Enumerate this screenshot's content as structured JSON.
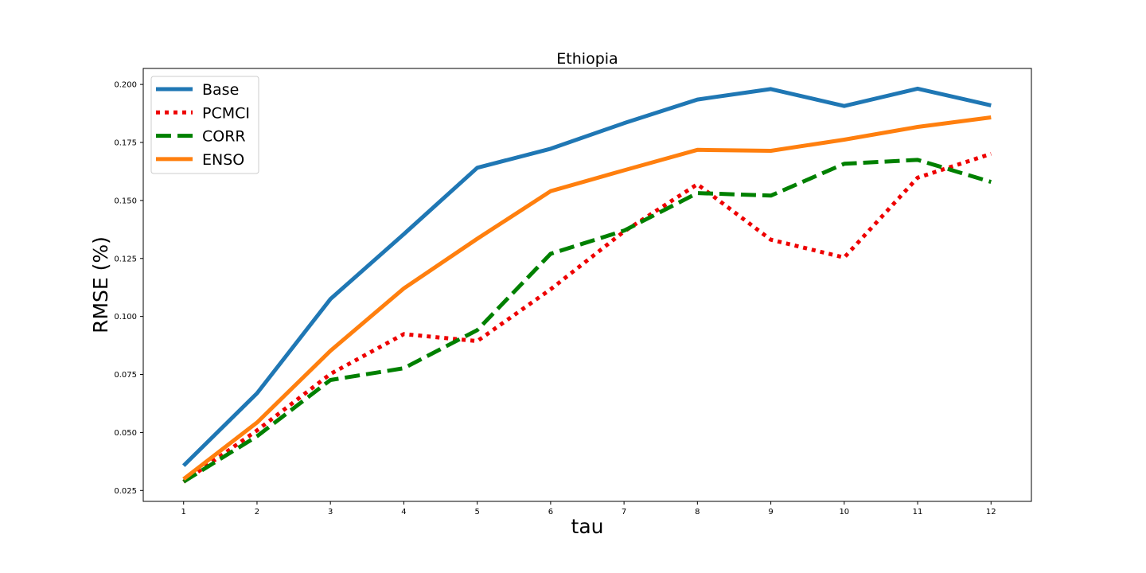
{
  "chart_data": {
    "type": "line",
    "title": "Ethiopia",
    "xlabel": "tau",
    "ylabel": "RMSE (%)",
    "x": [
      1,
      2,
      3,
      4,
      5,
      6,
      7,
      8,
      9,
      10,
      11,
      12
    ],
    "x_ticks": [
      "1",
      "2",
      "3",
      "4",
      "5",
      "6",
      "7",
      "8",
      "9",
      "10",
      "11",
      "12"
    ],
    "xlim": [
      0.45,
      12.55
    ],
    "ylim": [
      0.0203,
      0.2069
    ],
    "y_ticks": [
      "0.025",
      "0.050",
      "0.075",
      "0.100",
      "0.125",
      "0.150",
      "0.175",
      "0.200"
    ],
    "y_tick_values": [
      0.025,
      0.05,
      0.075,
      0.1,
      0.125,
      0.15,
      0.175,
      0.2
    ],
    "grid": false,
    "legend_position": "upper-left",
    "series": [
      {
        "name": "Base",
        "color": "#1f77b4",
        "style": "solid",
        "values": [
          0.0357,
          0.0669,
          0.1075,
          0.1355,
          0.1641,
          0.1723,
          0.1833,
          0.1935,
          0.198,
          0.1907,
          0.1982,
          0.191
        ]
      },
      {
        "name": "PCMCI",
        "color": "#ee0000",
        "style": "dotted",
        "values": [
          0.0287,
          0.0509,
          0.0752,
          0.0924,
          0.0894,
          0.1117,
          0.1366,
          0.157,
          0.1331,
          0.1254,
          0.1598,
          0.1701
        ]
      },
      {
        "name": "CORR",
        "color": "#008000",
        "style": "dashed",
        "values": [
          0.0288,
          0.0484,
          0.0726,
          0.0777,
          0.0941,
          0.127,
          0.137,
          0.1532,
          0.1521,
          0.1658,
          0.1675,
          0.158
        ]
      },
      {
        "name": "ENSO",
        "color": "#ff7f0e",
        "style": "solid",
        "values": [
          0.0299,
          0.0543,
          0.0852,
          0.1121,
          0.1335,
          0.154,
          0.163,
          0.1718,
          0.1714,
          0.1762,
          0.1817,
          0.1858
        ]
      }
    ]
  }
}
